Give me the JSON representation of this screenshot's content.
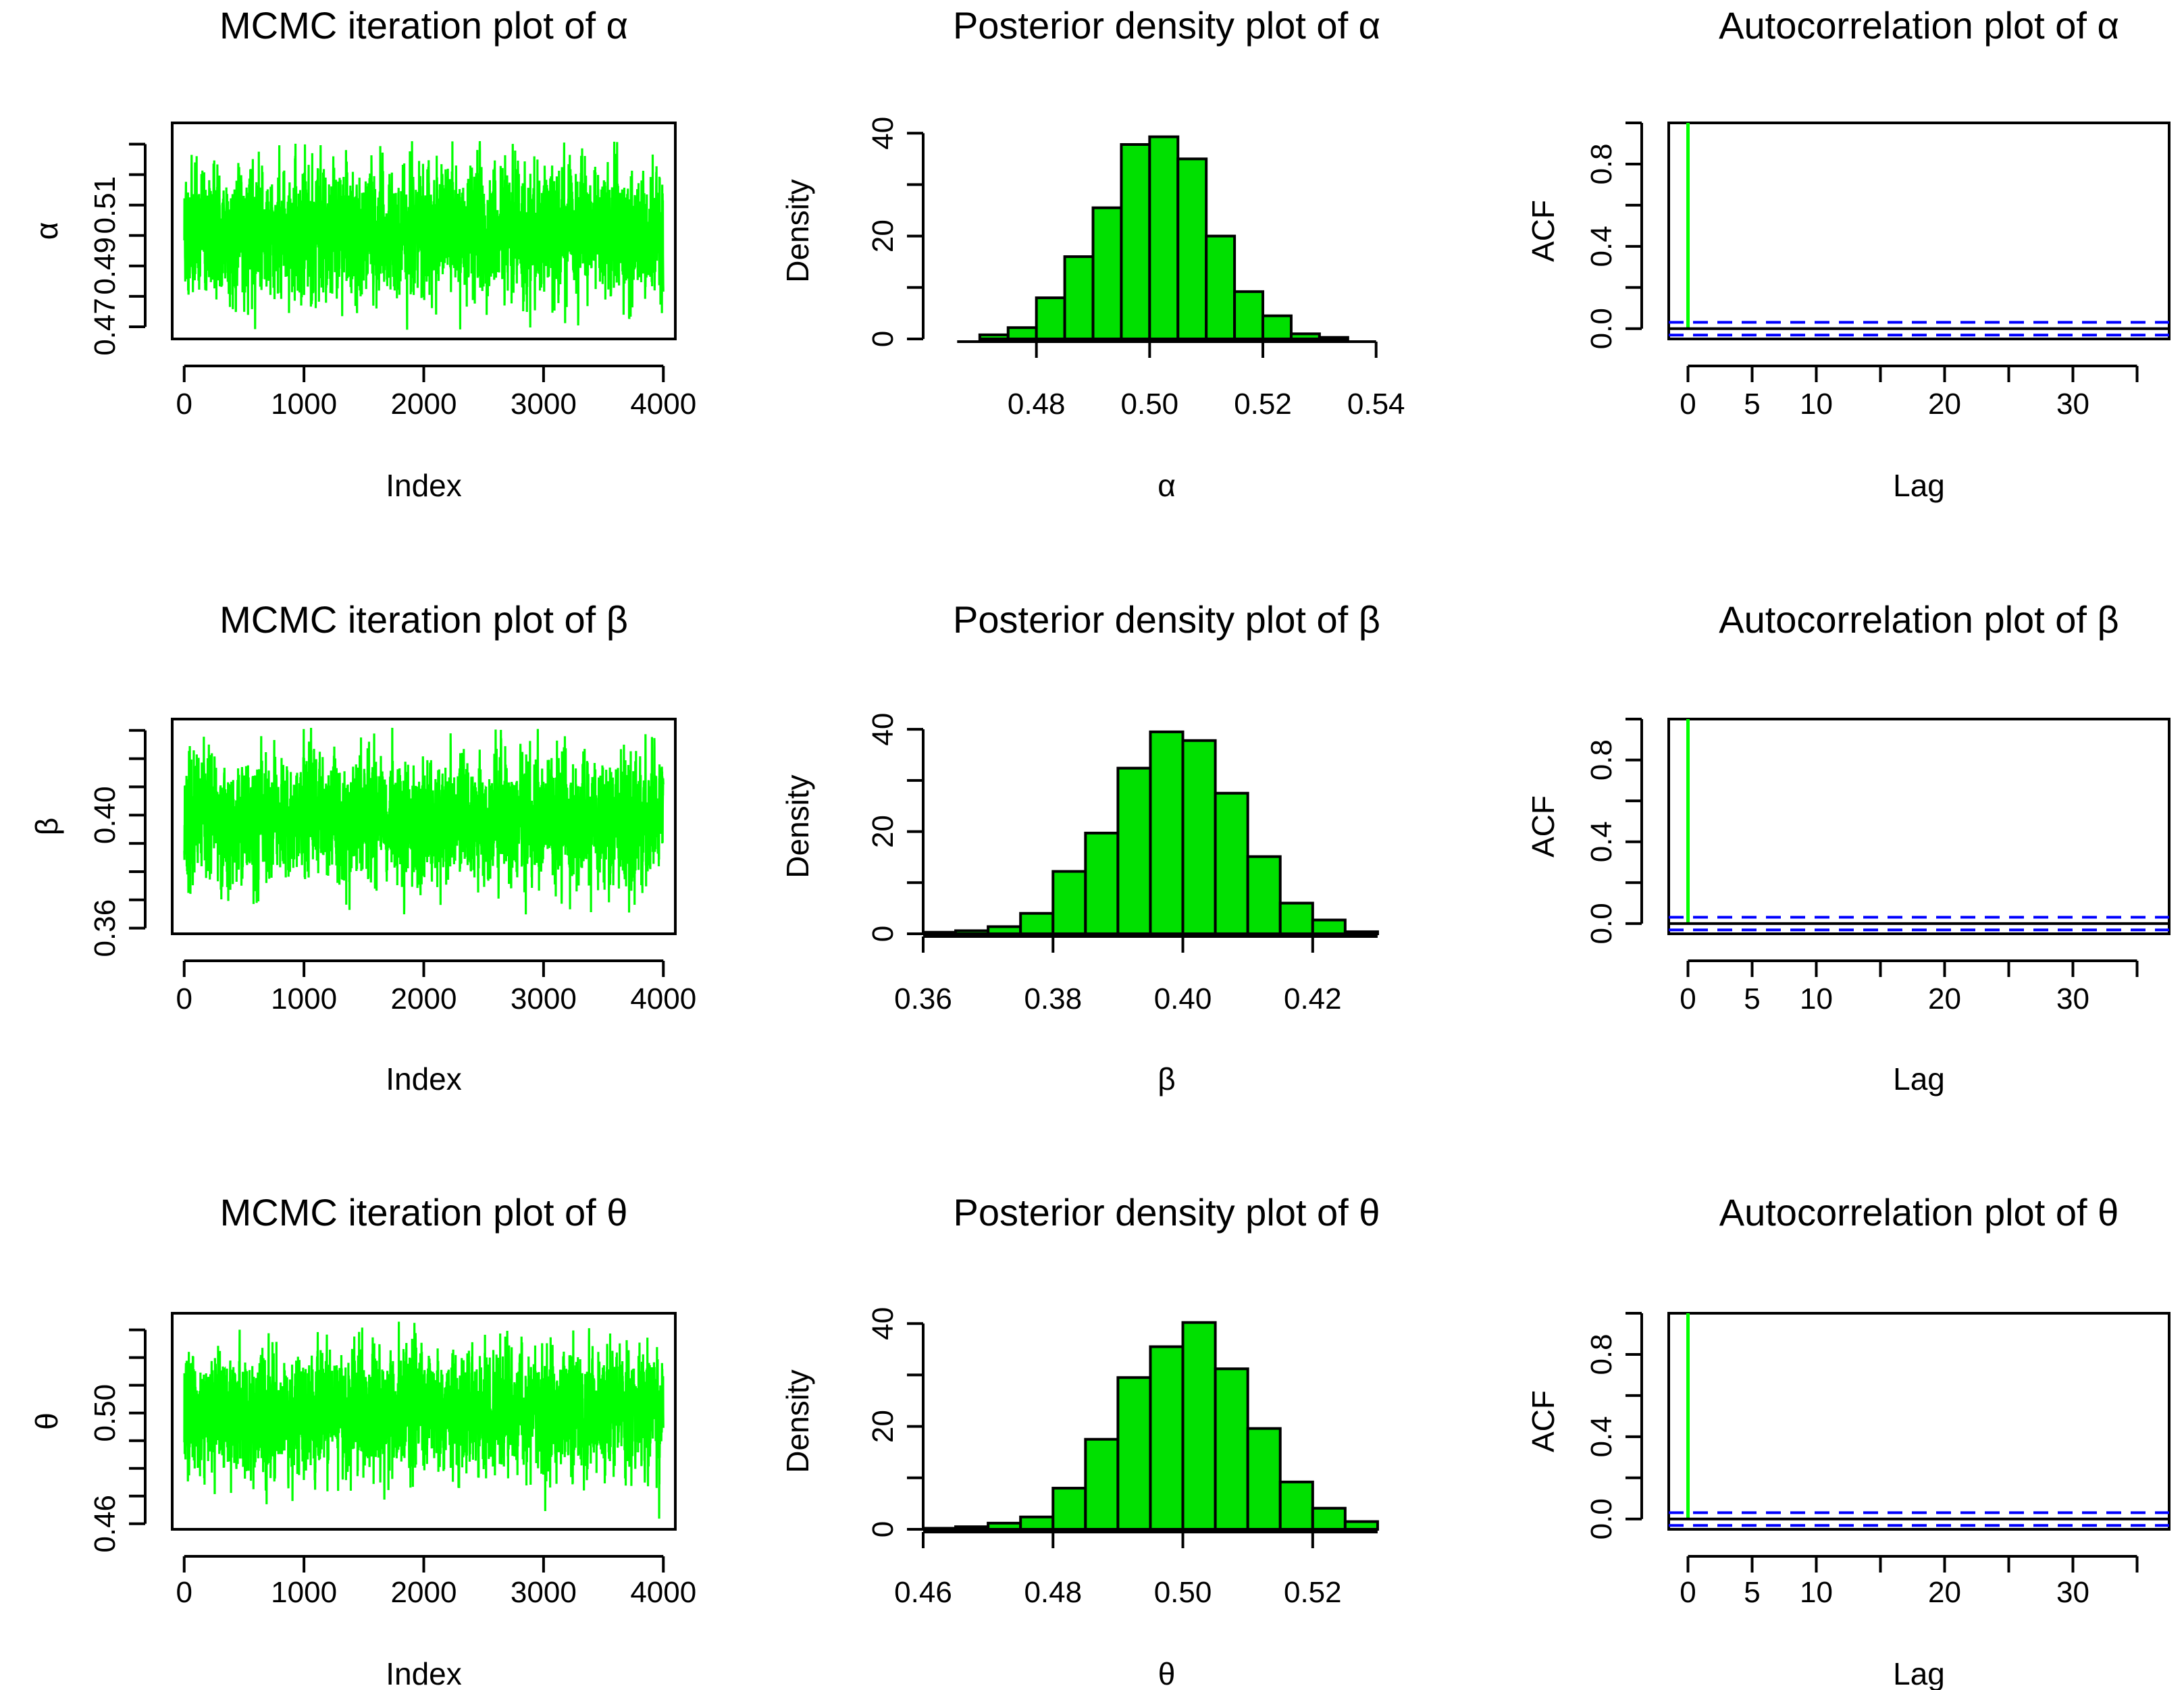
{
  "figure": {
    "description_rows": [
      "alpha",
      "beta",
      "theta"
    ]
  },
  "colors": {
    "series": "#00ff00",
    "bar_fill": "#00e000",
    "outline": "#000000",
    "ci_line": "#0000ff"
  },
  "chart_data": [
    {
      "type": "line",
      "row": 0,
      "col": 0,
      "title": "MCMC iteration plot of α",
      "xlabel": "Index",
      "ylabel": "α",
      "xlim": [
        -100,
        4100
      ],
      "ylim": [
        0.466,
        0.537
      ],
      "xticks": [
        0,
        1000,
        2000,
        3000,
        4000
      ],
      "xtick_labels": [
        "0",
        "1000",
        "2000",
        "3000",
        "4000"
      ],
      "yticks": [
        0.47,
        0.48,
        0.49,
        0.5,
        0.51,
        0.52,
        0.53
      ],
      "ytick_labels": {
        "0.47": "0.47",
        "0.49": "0.49",
        "0.51": "0.51"
      },
      "trace": {
        "n": 4000,
        "mean": 0.501,
        "sd": 0.01,
        "min": 0.469,
        "max": 0.531,
        "seed": 11
      }
    },
    {
      "type": "bar",
      "row": 0,
      "col": 1,
      "title": "Posterior density plot of α",
      "xlabel": "α",
      "ylabel": "Density",
      "xlim": [
        0.46,
        0.546
      ],
      "ylim": [
        0,
        42
      ],
      "xticks": [
        0.48,
        0.5,
        0.52,
        0.54
      ],
      "xtick_labels": [
        "0.48",
        "0.50",
        "0.52",
        "0.54"
      ],
      "yticks": [
        0,
        10,
        20,
        30,
        40
      ],
      "ytick_labels": {
        "0": "0",
        "20": "20",
        "40": "40"
      },
      "bin_edges": [
        0.47,
        0.475,
        0.48,
        0.485,
        0.49,
        0.495,
        0.5,
        0.505,
        0.51,
        0.515,
        0.52,
        0.525,
        0.53,
        0.535
      ],
      "values": [
        0.8,
        2.2,
        8.0,
        16.0,
        25.5,
        37.8,
        39.3,
        35.0,
        20.0,
        9.2,
        4.5,
        1.0,
        0.3
      ],
      "axis_extent": [
        0.466,
        0.54
      ]
    },
    {
      "type": "bar",
      "row": 0,
      "col": 2,
      "title": "Autocorrelation plot of α",
      "xlabel": "Lag",
      "ylabel": "ACF",
      "xlim": [
        -1.5,
        37.5
      ],
      "ylim": [
        -0.05,
        1.0
      ],
      "xticks": [
        0,
        5,
        10,
        15,
        20,
        25,
        30,
        35
      ],
      "xtick_labels": {
        "0": "0",
        "5": "5",
        "10": "10",
        "20": "20",
        "30": "30"
      },
      "yticks": [
        0.0,
        0.2,
        0.4,
        0.6,
        0.8,
        1.0
      ],
      "ytick_labels": {
        "0": "0.0",
        "0.4": "0.4",
        "0.8": "0.8"
      },
      "lags": [
        0
      ],
      "acf": [
        1.0
      ],
      "ci": 0.031
    },
    {
      "type": "line",
      "row": 1,
      "col": 0,
      "title": "MCMC iteration plot of β",
      "xlabel": "Index",
      "ylabel": "β",
      "xlim": [
        -100,
        4100
      ],
      "ylim": [
        0.358,
        0.434
      ],
      "xticks": [
        0,
        1000,
        2000,
        3000,
        4000
      ],
      "xtick_labels": [
        "0",
        "1000",
        "2000",
        "3000",
        "4000"
      ],
      "yticks": [
        0.36,
        0.37,
        0.38,
        0.39,
        0.4,
        0.41,
        0.42,
        0.43
      ],
      "ytick_labels": {
        "0.36": "0.36",
        "0.4": "0.40"
      },
      "trace": {
        "n": 4000,
        "mean": 0.398,
        "sd": 0.0102,
        "min": 0.361,
        "max": 0.431,
        "seed": 23
      }
    },
    {
      "type": "bar",
      "row": 1,
      "col": 1,
      "title": "Posterior density plot of β",
      "xlabel": "β",
      "ylabel": "Density",
      "xlim": [
        0.36,
        0.435
      ],
      "ylim": [
        0,
        42
      ],
      "xticks": [
        0.36,
        0.38,
        0.4,
        0.42
      ],
      "xtick_labels": [
        "0.36",
        "0.38",
        "0.40",
        "0.42"
      ],
      "yticks": [
        0,
        10,
        20,
        30,
        40
      ],
      "ytick_labels": {
        "0": "0",
        "20": "20",
        "40": "40"
      },
      "bin_edges": [
        0.36,
        0.365,
        0.37,
        0.375,
        0.38,
        0.385,
        0.39,
        0.395,
        0.4,
        0.405,
        0.41,
        0.415,
        0.42,
        0.425,
        0.43
      ],
      "values": [
        0.3,
        0.6,
        1.4,
        4.0,
        12.2,
        19.7,
        32.4,
        39.5,
        37.8,
        27.5,
        15.1,
        6.0,
        2.7,
        0.4
      ],
      "axis_extent": [
        0.36,
        0.43
      ]
    },
    {
      "type": "bar",
      "row": 1,
      "col": 2,
      "title": "Autocorrelation plot of β",
      "xlabel": "Lag",
      "ylabel": "ACF",
      "xlim": [
        -1.5,
        37.5
      ],
      "ylim": [
        -0.05,
        1.0
      ],
      "xticks": [
        0,
        5,
        10,
        15,
        20,
        25,
        30,
        35
      ],
      "xtick_labels": {
        "0": "0",
        "5": "5",
        "10": "10",
        "20": "20",
        "30": "30"
      },
      "yticks": [
        0.0,
        0.2,
        0.4,
        0.6,
        0.8,
        1.0
      ],
      "ytick_labels": {
        "0": "0.0",
        "0.4": "0.4",
        "0.8": "0.8"
      },
      "lags": [
        0
      ],
      "acf": [
        1.0
      ],
      "ci": 0.031
    },
    {
      "type": "line",
      "row": 2,
      "col": 0,
      "title": "MCMC iteration plot of θ",
      "xlabel": "Index",
      "ylabel": "θ",
      "xlim": [
        -100,
        4100
      ],
      "ylim": [
        0.458,
        0.536
      ],
      "xticks": [
        0,
        1000,
        2000,
        3000,
        4000
      ],
      "xtick_labels": [
        "0",
        "1000",
        "2000",
        "3000",
        "4000"
      ],
      "yticks": [
        0.46,
        0.47,
        0.48,
        0.49,
        0.5,
        0.51,
        0.52,
        0.53
      ],
      "ytick_labels": {
        "0.46": "0.46",
        "0.5": "0.50"
      },
      "trace": {
        "n": 4000,
        "mean": 0.5,
        "sd": 0.0102,
        "min": 0.461,
        "max": 0.533,
        "seed": 37
      }
    },
    {
      "type": "bar",
      "row": 2,
      "col": 1,
      "title": "Posterior density plot of θ",
      "xlabel": "θ",
      "ylabel": "Density",
      "xlim": [
        0.46,
        0.535
      ],
      "ylim": [
        0,
        42
      ],
      "xticks": [
        0.46,
        0.48,
        0.5,
        0.52
      ],
      "xtick_labels": [
        "0.46",
        "0.48",
        "0.50",
        "0.52"
      ],
      "yticks": [
        0,
        10,
        20,
        30,
        40
      ],
      "ytick_labels": {
        "0": "0",
        "20": "20",
        "40": "40"
      },
      "bin_edges": [
        0.46,
        0.465,
        0.47,
        0.475,
        0.48,
        0.485,
        0.49,
        0.495,
        0.5,
        0.505,
        0.51,
        0.515,
        0.52,
        0.525,
        0.53
      ],
      "values": [
        0.2,
        0.5,
        1.2,
        2.4,
        8.0,
        17.5,
        29.5,
        35.5,
        40.2,
        31.2,
        19.6,
        9.2,
        4.1,
        1.5
      ],
      "axis_extent": [
        0.46,
        0.53
      ]
    },
    {
      "type": "bar",
      "row": 2,
      "col": 2,
      "title": "Autocorrelation plot of θ",
      "xlabel": "Lag",
      "ylabel": "ACF",
      "xlim": [
        -1.5,
        37.5
      ],
      "ylim": [
        -0.05,
        1.0
      ],
      "xticks": [
        0,
        5,
        10,
        15,
        20,
        25,
        30,
        35
      ],
      "xtick_labels": {
        "0": "0",
        "5": "5",
        "10": "10",
        "20": "20",
        "30": "30"
      },
      "yticks": [
        0.0,
        0.2,
        0.4,
        0.6,
        0.8,
        1.0
      ],
      "ytick_labels": {
        "0": "0.0",
        "0.4": "0.4",
        "0.8": "0.8"
      },
      "lags": [
        0
      ],
      "acf": [
        1.0
      ],
      "ci": 0.031
    }
  ]
}
